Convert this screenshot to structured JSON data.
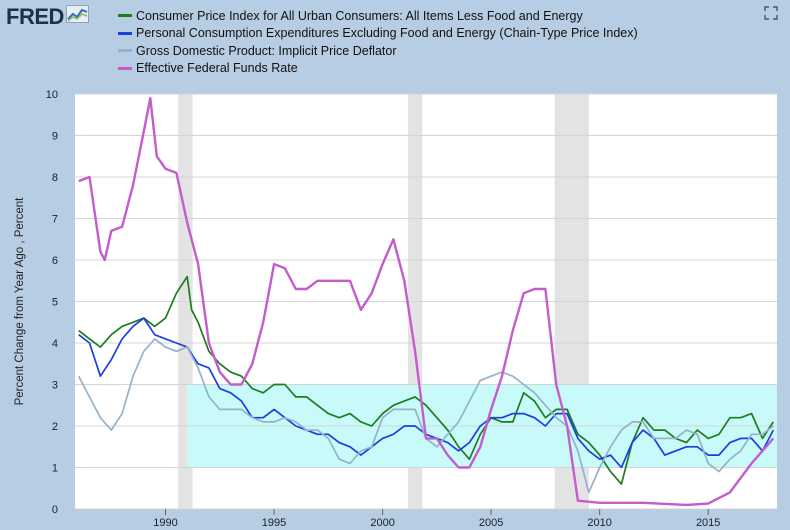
{
  "logo": {
    "text": "FRED",
    "icon": "fred-chart-icon"
  },
  "header": {
    "expand_icon": "fullscreen-icon"
  },
  "chart_data": {
    "type": "line",
    "title": "",
    "xlabel": "",
    "ylabel": "Percent Change from Year Ago , Percent",
    "xlim": [
      1985.83,
      2018.17
    ],
    "ylim": [
      0,
      10
    ],
    "yticks": [
      0,
      1,
      2,
      3,
      4,
      5,
      6,
      7,
      8,
      9,
      10
    ],
    "xticks": [
      1990,
      1995,
      2000,
      2005,
      2010,
      2015
    ],
    "grid": "horizontal",
    "legend_position": "top",
    "recessions": [
      [
        1990.58,
        1991.25
      ],
      [
        2001.17,
        2001.83
      ],
      [
        2007.92,
        2009.5
      ]
    ],
    "target_band": {
      "x": [
        1991.0,
        2018.17
      ],
      "y": [
        1.0,
        3.0
      ],
      "color": "#c8fafa"
    },
    "series": [
      {
        "name": "Consumer Price Index for All Urban Consumers: All Items Less Food and Energy",
        "color": "#1e7d1e",
        "x": [
          1986.0,
          1986.5,
          1987.0,
          1987.5,
          1988.0,
          1988.5,
          1989.0,
          1989.5,
          1990.0,
          1990.5,
          1991.0,
          1991.2,
          1991.5,
          1992.0,
          1992.5,
          1993.0,
          1993.5,
          1994.0,
          1994.5,
          1995.0,
          1995.5,
          1996.0,
          1996.5,
          1997.0,
          1997.5,
          1998.0,
          1998.5,
          1999.0,
          1999.5,
          2000.0,
          2000.5,
          2001.0,
          2001.5,
          2002.0,
          2002.5,
          2003.0,
          2003.5,
          2004.0,
          2004.5,
          2005.0,
          2005.5,
          2006.0,
          2006.5,
          2007.0,
          2007.5,
          2008.0,
          2008.5,
          2009.0,
          2009.5,
          2010.0,
          2010.5,
          2011.0,
          2011.5,
          2012.0,
          2012.5,
          2013.0,
          2013.5,
          2014.0,
          2014.5,
          2015.0,
          2015.5,
          2016.0,
          2016.5,
          2017.0,
          2017.5,
          2018.0
        ],
        "values": [
          4.3,
          4.1,
          3.9,
          4.2,
          4.4,
          4.5,
          4.6,
          4.4,
          4.6,
          5.2,
          5.6,
          4.8,
          4.5,
          3.8,
          3.5,
          3.3,
          3.2,
          2.9,
          2.8,
          3.0,
          3.0,
          2.7,
          2.7,
          2.5,
          2.3,
          2.2,
          2.3,
          2.1,
          2.0,
          2.3,
          2.5,
          2.6,
          2.7,
          2.5,
          2.2,
          1.9,
          1.5,
          1.2,
          1.8,
          2.2,
          2.1,
          2.1,
          2.8,
          2.6,
          2.2,
          2.4,
          2.4,
          1.8,
          1.6,
          1.3,
          0.9,
          0.6,
          1.6,
          2.2,
          1.9,
          1.9,
          1.7,
          1.6,
          1.9,
          1.7,
          1.8,
          2.2,
          2.2,
          2.3,
          1.7,
          2.1
        ]
      },
      {
        "name": "Personal Consumption Expenditures Excluding Food and Energy (Chain-Type Price Index)",
        "color": "#1c3fe0",
        "x": [
          1986.0,
          1986.5,
          1987.0,
          1987.5,
          1988.0,
          1988.5,
          1989.0,
          1989.5,
          1990.0,
          1990.5,
          1991.0,
          1991.5,
          1992.0,
          1992.5,
          1993.0,
          1993.5,
          1994.0,
          1994.5,
          1995.0,
          1995.5,
          1996.0,
          1996.5,
          1997.0,
          1997.5,
          1998.0,
          1998.5,
          1999.0,
          1999.5,
          2000.0,
          2000.5,
          2001.0,
          2001.5,
          2002.0,
          2002.5,
          2003.0,
          2003.5,
          2004.0,
          2004.5,
          2005.0,
          2005.5,
          2006.0,
          2006.5,
          2007.0,
          2007.5,
          2008.0,
          2008.5,
          2009.0,
          2009.5,
          2010.0,
          2010.5,
          2011.0,
          2011.5,
          2012.0,
          2012.5,
          2013.0,
          2013.5,
          2014.0,
          2014.5,
          2015.0,
          2015.5,
          2016.0,
          2016.5,
          2017.0,
          2017.5,
          2018.0
        ],
        "values": [
          4.2,
          4.0,
          3.2,
          3.6,
          4.1,
          4.4,
          4.6,
          4.2,
          4.1,
          4.0,
          3.9,
          3.5,
          3.4,
          2.9,
          2.8,
          2.6,
          2.2,
          2.2,
          2.4,
          2.2,
          2.0,
          1.9,
          1.8,
          1.8,
          1.6,
          1.5,
          1.3,
          1.5,
          1.7,
          1.8,
          2.0,
          2.0,
          1.8,
          1.7,
          1.6,
          1.4,
          1.6,
          2.0,
          2.2,
          2.2,
          2.3,
          2.3,
          2.2,
          2.0,
          2.3,
          2.3,
          1.7,
          1.4,
          1.2,
          1.3,
          1.0,
          1.6,
          1.9,
          1.7,
          1.3,
          1.4,
          1.5,
          1.5,
          1.3,
          1.3,
          1.6,
          1.7,
          1.7,
          1.4,
          1.9
        ]
      },
      {
        "name": "Gross Domestic Product: Implicit Price Deflator",
        "color": "#95b2cc",
        "x": [
          1986.0,
          1986.5,
          1987.0,
          1987.5,
          1988.0,
          1988.5,
          1989.0,
          1989.5,
          1990.0,
          1990.5,
          1991.0,
          1991.5,
          1992.0,
          1992.5,
          1993.0,
          1993.5,
          1994.0,
          1994.5,
          1995.0,
          1995.5,
          1996.0,
          1996.5,
          1997.0,
          1997.5,
          1998.0,
          1998.5,
          1999.0,
          1999.5,
          2000.0,
          2000.5,
          2001.0,
          2001.5,
          2002.0,
          2002.5,
          2003.0,
          2003.5,
          2004.0,
          2004.5,
          2005.0,
          2005.5,
          2006.0,
          2006.5,
          2007.0,
          2007.5,
          2008.0,
          2008.5,
          2009.0,
          2009.5,
          2010.0,
          2010.5,
          2011.0,
          2011.5,
          2012.0,
          2012.5,
          2013.0,
          2013.5,
          2014.0,
          2014.5,
          2015.0,
          2015.5,
          2016.0,
          2016.5,
          2017.0,
          2017.5,
          2018.0
        ],
        "values": [
          3.2,
          2.7,
          2.2,
          1.9,
          2.3,
          3.2,
          3.8,
          4.1,
          3.9,
          3.8,
          3.9,
          3.4,
          2.7,
          2.4,
          2.4,
          2.4,
          2.2,
          2.1,
          2.1,
          2.2,
          2.1,
          1.9,
          1.9,
          1.7,
          1.2,
          1.1,
          1.4,
          1.5,
          2.2,
          2.4,
          2.4,
          2.4,
          1.7,
          1.5,
          1.8,
          2.1,
          2.6,
          3.1,
          3.2,
          3.3,
          3.2,
          3.0,
          2.8,
          2.5,
          2.2,
          2.0,
          1.4,
          0.4,
          1.0,
          1.5,
          1.9,
          2.1,
          2.1,
          1.7,
          1.7,
          1.7,
          1.9,
          1.8,
          1.1,
          0.9,
          1.2,
          1.4,
          1.8,
          1.8,
          2.0
        ]
      },
      {
        "name": "Effective Federal Funds Rate",
        "color": "#c45ccc",
        "x": [
          1986.0,
          1986.5,
          1987.0,
          1987.2,
          1987.5,
          1988.0,
          1988.5,
          1989.0,
          1989.3,
          1989.6,
          1990.0,
          1990.5,
          1991.0,
          1991.5,
          1992.0,
          1992.5,
          1993.0,
          1993.5,
          1994.0,
          1994.5,
          1995.0,
          1995.5,
          1996.0,
          1996.5,
          1997.0,
          1997.5,
          1998.0,
          1998.5,
          1999.0,
          1999.5,
          2000.0,
          2000.5,
          2001.0,
          2001.5,
          2002.0,
          2002.5,
          2003.0,
          2003.5,
          2004.0,
          2004.5,
          2005.0,
          2005.5,
          2006.0,
          2006.5,
          2007.0,
          2007.5,
          2008.0,
          2008.5,
          2009.0,
          2010.0,
          2012.0,
          2014.0,
          2015.0,
          2016.0,
          2017.0,
          2018.0
        ],
        "values": [
          7.9,
          8.0,
          6.2,
          6.0,
          6.7,
          6.8,
          7.8,
          9.1,
          9.9,
          8.5,
          8.2,
          8.1,
          6.9,
          5.9,
          4.0,
          3.3,
          3.0,
          3.0,
          3.5,
          4.5,
          5.9,
          5.8,
          5.3,
          5.3,
          5.5,
          5.5,
          5.5,
          5.5,
          4.8,
          5.2,
          5.9,
          6.5,
          5.5,
          3.8,
          1.7,
          1.7,
          1.3,
          1.0,
          1.0,
          1.5,
          2.4,
          3.2,
          4.3,
          5.2,
          5.3,
          5.3,
          3.0,
          2.0,
          0.2,
          0.15,
          0.15,
          0.1,
          0.13,
          0.4,
          1.1,
          1.7
        ]
      }
    ]
  }
}
